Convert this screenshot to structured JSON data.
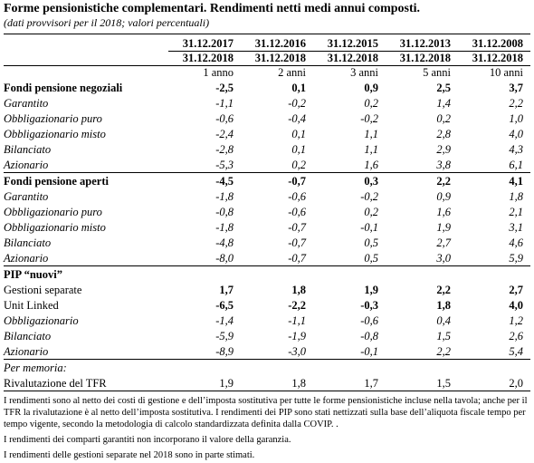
{
  "title": "Forme pensionistiche complementari. Rendimenti netti medi annui composti.",
  "subtitle": "(dati provvisori per il 2018; valori percentuali)",
  "columns": [
    {
      "from": "31.12.2017",
      "to": "31.12.2018",
      "period": "1 anno"
    },
    {
      "from": "31.12.2016",
      "to": "31.12.2018",
      "period": "2 anni"
    },
    {
      "from": "31.12.2015",
      "to": "31.12.2018",
      "period": "3 anni"
    },
    {
      "from": "31.12.2013",
      "to": "31.12.2018",
      "period": "5 anni"
    },
    {
      "from": "31.12.2008",
      "to": "31.12.2018",
      "period": "10 anni"
    }
  ],
  "groups": [
    {
      "label": "Fondi pensione negoziali",
      "values": [
        "-2,5",
        "0,1",
        "0,9",
        "2,5",
        "3,7"
      ],
      "rows": [
        {
          "label": "Garantito",
          "values": [
            "-1,1",
            "-0,2",
            "0,2",
            "1,4",
            "2,2"
          ]
        },
        {
          "label": "Obbligazionario puro",
          "values": [
            "-0,6",
            "-0,4",
            "-0,2",
            "0,2",
            "1,0"
          ]
        },
        {
          "label": "Obbligazionario misto",
          "values": [
            "-2,4",
            "0,1",
            "1,1",
            "2,8",
            "4,0"
          ]
        },
        {
          "label": "Bilanciato",
          "values": [
            "-2,8",
            "0,1",
            "1,1",
            "2,9",
            "4,3"
          ]
        },
        {
          "label": "Azionario",
          "values": [
            "-5,3",
            "0,2",
            "1,6",
            "3,8",
            "6,1"
          ]
        }
      ]
    },
    {
      "label": "Fondi pensione aperti",
      "values": [
        "-4,5",
        "-0,7",
        "0,3",
        "2,2",
        "4,1"
      ],
      "rows": [
        {
          "label": "Garantito",
          "values": [
            "-1,8",
            "-0,6",
            "-0,2",
            "0,9",
            "1,8"
          ]
        },
        {
          "label": "Obbligazionario puro",
          "values": [
            "-0,8",
            "-0,6",
            "0,2",
            "1,6",
            "2,1"
          ]
        },
        {
          "label": "Obbligazionario misto",
          "values": [
            "-1,8",
            "-0,7",
            "-0,1",
            "1,9",
            "3,1"
          ]
        },
        {
          "label": "Bilanciato",
          "values": [
            "-4,8",
            "-0,7",
            "0,5",
            "2,7",
            "4,6"
          ]
        },
        {
          "label": "Azionario",
          "values": [
            "-8,0",
            "-0,7",
            "0,5",
            "3,0",
            "5,9"
          ]
        }
      ]
    },
    {
      "title": "PIP “nuovi”",
      "rows": [
        {
          "label": "Gestioni separate",
          "values": [
            "1,7",
            "1,8",
            "1,9",
            "2,2",
            "2,7"
          ]
        },
        {
          "label": "Unit Linked",
          "values": [
            "-6,5",
            "-2,2",
            "-0,3",
            "1,8",
            "4,0"
          ],
          "rows": [
            {
              "label": "Obbligazionario",
              "values": [
                "-1,4",
                "-1,1",
                "-0,6",
                "0,4",
                "1,2"
              ]
            },
            {
              "label": "Bilanciato",
              "values": [
                "-5,9",
                "-1,9",
                "-0,8",
                "1,5",
                "2,6"
              ]
            },
            {
              "label": "Azionario",
              "values": [
                "-8,9",
                "-3,0",
                "-0,1",
                "2,2",
                "5,4"
              ]
            }
          ]
        }
      ]
    },
    {
      "title": "Per memoria:",
      "rows": [
        {
          "label": "Rivalutazione del TFR",
          "values": [
            "1,9",
            "1,8",
            "1,7",
            "1,5",
            "2,0"
          ]
        }
      ]
    }
  ],
  "notes": [
    "I rendimenti sono al netto dei costi di gestione e dell’imposta sostitutiva per tutte le forme pensionistiche incluse nella tavola; anche per il TFR la rivalutazione è al netto dell’imposta sostitutiva. I rendimenti dei PIP sono stati nettizzati sulla base dell’aliquota fiscale tempo per tempo vigente, secondo la metodologia di calcolo standardizzata definita dalla COVIP. .",
    "I rendimenti dei comparti garantiti non incorporano il valore della garanzia.",
    "I rendimenti delle gestioni separate nel 2018 sono in parte stimati."
  ]
}
